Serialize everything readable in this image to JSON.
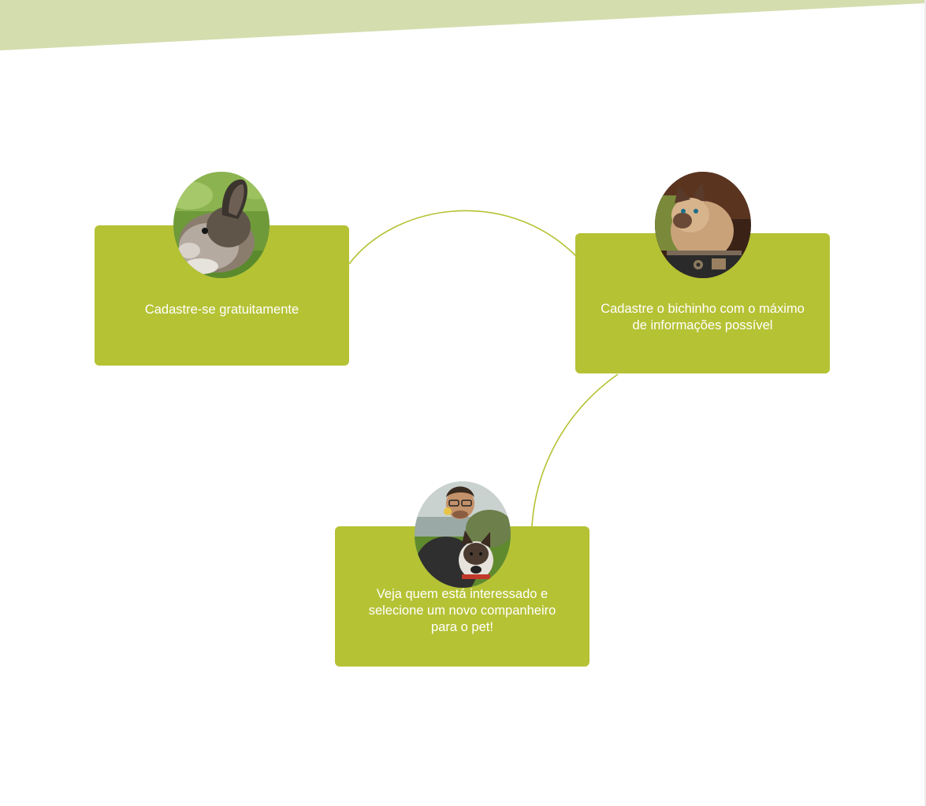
{
  "colors": {
    "banner": "#d4ddae",
    "card": "#b5c234",
    "connector": "#b5c234",
    "card_text": "#ffffff"
  },
  "steps": [
    {
      "text": "Cadastre-se gratuitamente",
      "image": "rabbit-photo"
    },
    {
      "text": "Cadastre o bichinho com o máximo de informações possível",
      "image": "cat-photo"
    },
    {
      "text": "Veja quem está interessado e selecione um novo companheiro para o pet!",
      "image": "person-with-dog-photo"
    }
  ]
}
